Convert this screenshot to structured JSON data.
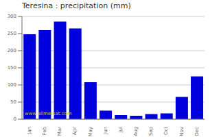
{
  "chart_data": {
    "type": "bar",
    "title": "Teresina : precipitation (mm)",
    "categories": [
      "Jan",
      "Feb",
      "Mar",
      "Apr",
      "May",
      "Jun",
      "Jul",
      "Aug",
      "Sep",
      "Oct",
      "Nov",
      "Dec"
    ],
    "values": [
      248,
      260,
      285,
      265,
      108,
      25,
      12,
      10,
      15,
      17,
      65,
      125
    ],
    "color": "#0000dd",
    "ylim": [
      0,
      300
    ],
    "yticks": [
      0,
      50,
      100,
      150,
      200,
      250,
      300
    ],
    "grid": true,
    "annotations": [
      "www.allmetsat.com"
    ]
  }
}
